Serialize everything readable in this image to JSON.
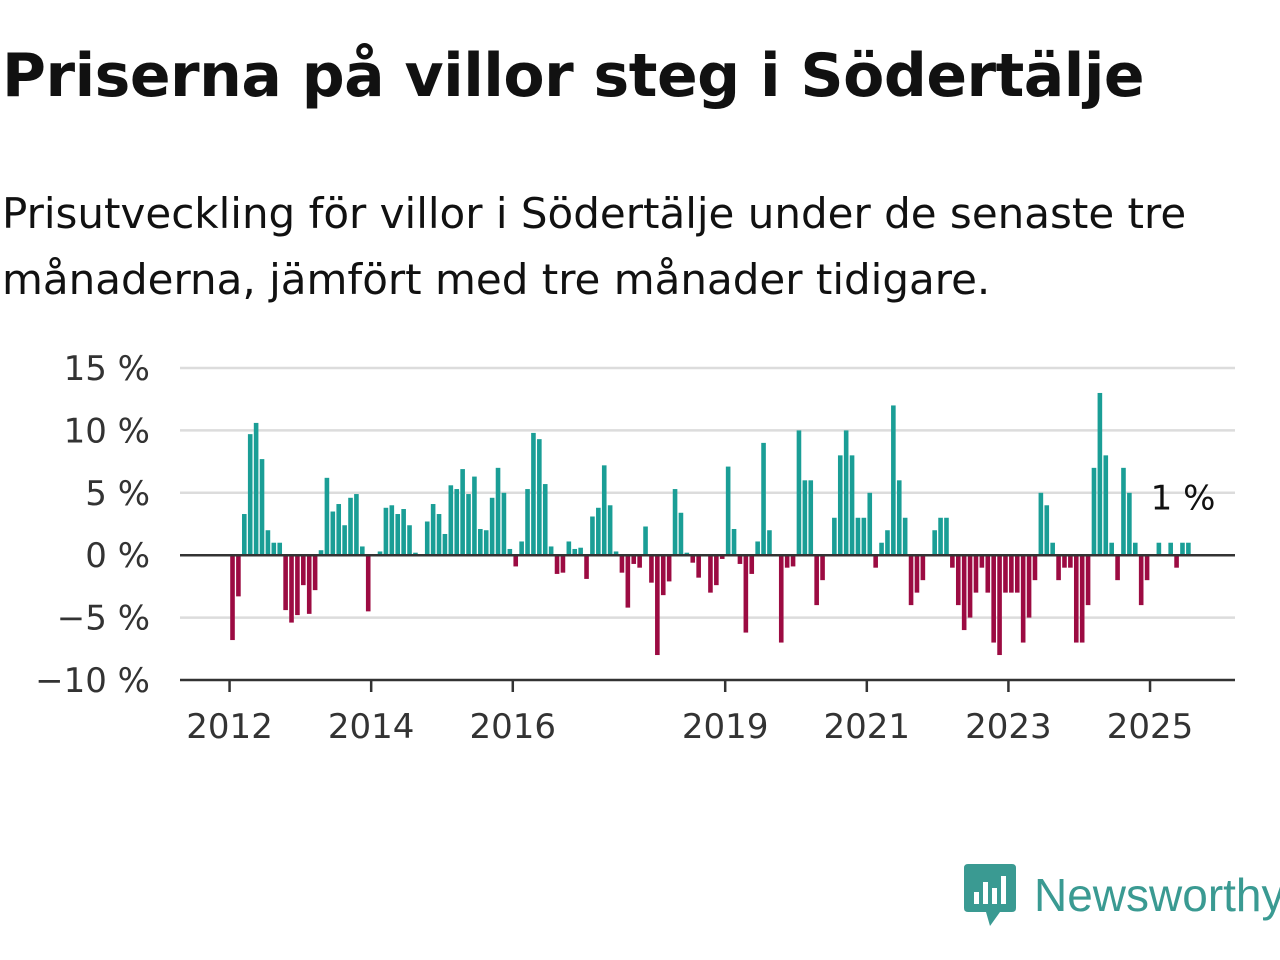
{
  "header": {
    "title": "Priserna på villor steg i Södertälje",
    "subtitle": "Prisutveckling för villor i Södertälje under de senaste tre månaderna, jämfört med tre månader tidigare."
  },
  "chart_data": {
    "type": "bar",
    "title": "Priserna på villor steg i Södertälje",
    "subtitle": "Prisutveckling för villor i Södertälje under de senaste tre månaderna, jämfört med tre månader tidigare.",
    "xlabel": "",
    "ylabel": "",
    "ylim": [
      -10,
      15
    ],
    "yticks": [
      -10,
      -5,
      0,
      5,
      10,
      15
    ],
    "ytick_labels": [
      "−10 %",
      "−5 %",
      "0 %",
      "5 %",
      "10 %",
      "15 %"
    ],
    "xticks": [
      2012,
      2014,
      2016,
      2019,
      2021,
      2023,
      2025
    ],
    "xtick_labels": [
      "2012",
      "2014",
      "2016",
      "2019",
      "2021",
      "2023",
      "2025"
    ],
    "xlim": [
      2011.3,
      2026.2
    ],
    "bar_interval": "month",
    "grid": true,
    "positive_color": "#1a9e96",
    "negative_color": "#9c0b42",
    "start_month": "2012-01",
    "values": [
      -6.8,
      -3.3,
      3.3,
      9.7,
      10.6,
      7.7,
      2,
      1,
      1,
      -4.4,
      -5.4,
      -4.8,
      -2.4,
      -4.7,
      -2.8,
      0.4,
      6.2,
      3.5,
      4.1,
      2.4,
      4.6,
      4.9,
      0.7,
      -4.5,
      0,
      0.3,
      3.8,
      4,
      3.3,
      3.7,
      2.4,
      0.2,
      0,
      2.7,
      4.1,
      3.3,
      1.7,
      5.6,
      5.3,
      6.9,
      4.9,
      6.3,
      2.1,
      2,
      4.6,
      7,
      5,
      0.5,
      -0.9,
      1.1,
      5.3,
      9.8,
      9.3,
      5.7,
      0.7,
      -1.5,
      -1.4,
      1.1,
      0.5,
      0.6,
      -1.9,
      3.1,
      3.8,
      7.2,
      4,
      0.3,
      -1.4,
      -4.2,
      -0.7,
      -1,
      2.3,
      -2.2,
      -8,
      -3.2,
      -2.1,
      5.3,
      3.4,
      0.2,
      -0.6,
      -1.8,
      0,
      -3,
      -2.4,
      -0.3,
      7.1,
      2.1,
      -0.7,
      -6.2,
      -1.5,
      1.1,
      9,
      2,
      0,
      -7,
      -1,
      -0.9,
      10,
      6,
      6,
      -4,
      -2,
      0,
      3,
      8,
      10,
      8,
      3,
      3,
      5,
      -1,
      1,
      2,
      12,
      6,
      3,
      -4,
      -3,
      -2,
      0,
      2,
      3,
      3,
      -1,
      -4,
      -6,
      -5,
      -3,
      -1,
      -3,
      -7,
      -8,
      -3,
      -3,
      -3,
      -7,
      -5,
      -2,
      5,
      4,
      1,
      -2,
      -1,
      -1,
      -7,
      -7,
      -4,
      7,
      13,
      8,
      1,
      -2,
      7,
      5,
      1,
      -4,
      -2,
      0,
      1,
      0,
      1,
      -1,
      1,
      1
    ],
    "annotation": "1 %"
  },
  "brand": {
    "name": "Newsworthy",
    "logo_icon": "bar-chart-speech-bubble-icon",
    "color": "#3a9a92"
  }
}
